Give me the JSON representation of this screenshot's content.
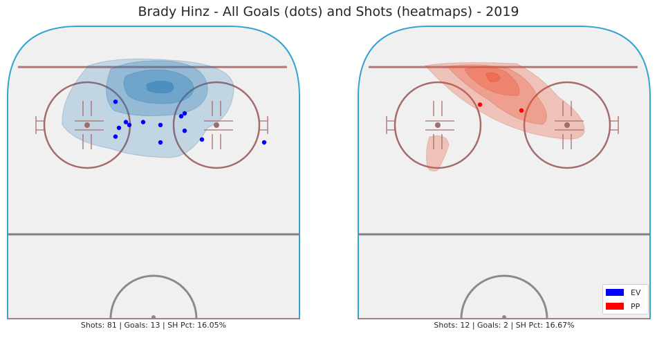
{
  "title": "Brady Hinz - All Goals (dots) and Shots (heatmaps) - 2019",
  "colors": {
    "ev": "#0000ff",
    "pp": "#ff0000",
    "ice": "#f0f0f0",
    "boards": "#33a4d0",
    "faceoff": "#a56a6a",
    "blueline_center": "#808080"
  },
  "chart_data": [
    {
      "type": "heatmap",
      "panel": "EV",
      "stats_text": "Shots: 81 | Goals: 13 | SH Pct: 16.05%",
      "goal_dots": [
        {
          "x": -11,
          "y": 74
        },
        {
          "x": -10,
          "y": 65
        },
        {
          "x": -8,
          "y": 67
        },
        {
          "x": -7,
          "y": 66
        },
        {
          "x": -3,
          "y": 67
        },
        {
          "x": 2,
          "y": 66
        },
        {
          "x": -11,
          "y": 62
        },
        {
          "x": 8,
          "y": 69
        },
        {
          "x": 9,
          "y": 70
        },
        {
          "x": 9,
          "y": 64
        },
        {
          "x": 2,
          "y": 60
        },
        {
          "x": 14,
          "y": 61
        },
        {
          "x": 32,
          "y": 60
        }
      ],
      "series": [
        {
          "name": "EV",
          "color": "#0000ff"
        }
      ]
    },
    {
      "type": "heatmap",
      "panel": "PP",
      "stats_text": "Shots: 12 | Goals: 2 | SH Pct: 16.67%",
      "goal_dots": [
        {
          "x": -7,
          "y": 73
        },
        {
          "x": 5,
          "y": 71
        }
      ],
      "series": [
        {
          "name": "PP",
          "color": "#ff0000"
        }
      ]
    }
  ],
  "legend": [
    {
      "label": "EV",
      "color": "#0000ff"
    },
    {
      "label": "PP",
      "color": "#ff0000"
    }
  ]
}
